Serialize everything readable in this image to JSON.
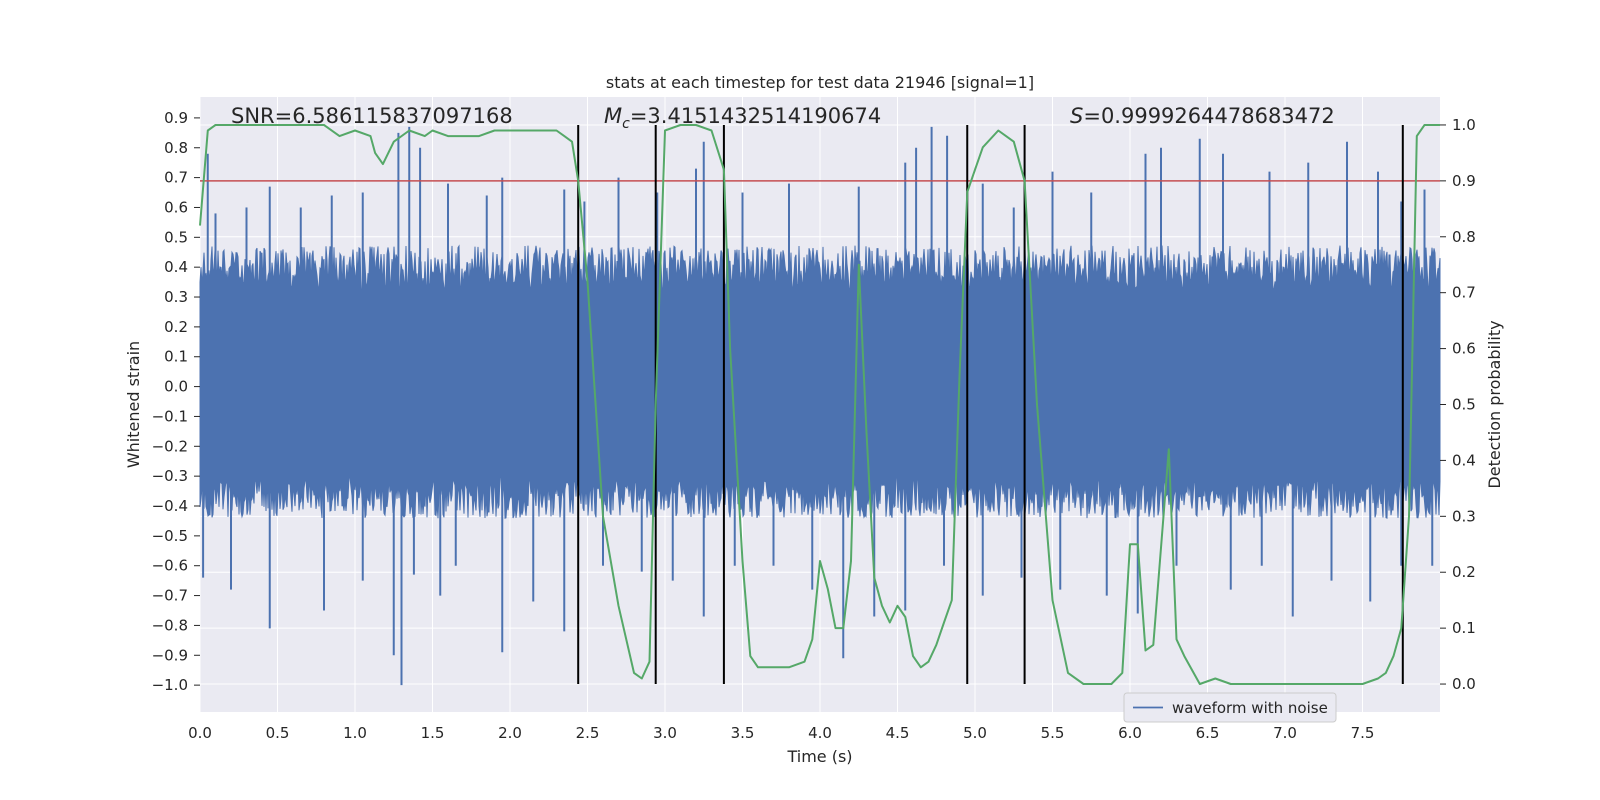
{
  "chart_data": {
    "type": "line",
    "title": "stats at each timestep for test data 21946 [signal=1]",
    "xlabel": "Time (s)",
    "ylabel_left": "Whitened strain",
    "ylabel_right": "Detection probability",
    "xlim": [
      0.0,
      8.0
    ],
    "ylim_left": [
      -1.09,
      0.97
    ],
    "ylim_right": [
      -0.05,
      1.05
    ],
    "x_ticks": [
      "0.0",
      "0.5",
      "1.0",
      "1.5",
      "2.0",
      "2.5",
      "3.0",
      "3.5",
      "4.0",
      "4.5",
      "5.0",
      "5.5",
      "6.0",
      "6.5",
      "7.0",
      "7.5"
    ],
    "y_left_ticks": [
      "0.9",
      "0.8",
      "0.7",
      "0.6",
      "0.5",
      "0.4",
      "0.3",
      "0.2",
      "0.1",
      "0.0",
      "−0.1",
      "−0.2",
      "−0.3",
      "−0.4",
      "−0.5",
      "−0.6",
      "−0.7",
      "−0.8",
      "−0.9",
      "−1.0"
    ],
    "y_left_tick_values": [
      0.9,
      0.8,
      0.7,
      0.6,
      0.5,
      0.4,
      0.3,
      0.2,
      0.1,
      0.0,
      -0.1,
      -0.2,
      -0.3,
      -0.4,
      -0.5,
      -0.6,
      -0.7,
      -0.8,
      -0.9,
      -1.0
    ],
    "y_right_ticks": [
      "1.0",
      "0.9",
      "0.8",
      "0.7",
      "0.6",
      "0.5",
      "0.4",
      "0.3",
      "0.2",
      "0.1",
      "0.0"
    ],
    "y_right_tick_values": [
      1.0,
      0.9,
      0.8,
      0.7,
      0.6,
      0.5,
      0.4,
      0.3,
      0.2,
      0.1,
      0.0
    ],
    "annotations": {
      "snr": "SNR=6.586115837097168",
      "mc_symbol": "M",
      "mc_subscript": "c",
      "mc_value": "=3.4151432514190674",
      "s_symbol": "S",
      "s_value": "=0.9999264478683472"
    },
    "threshold": {
      "value": 0.9,
      "axis": "right",
      "color": "#c44e52"
    },
    "vertical_lines": [
      2.44,
      2.94,
      3.38,
      4.95,
      5.32,
      7.76
    ],
    "waveform": {
      "name": "waveform with noise",
      "color": "#4c72b0",
      "envelope_upper": 0.45,
      "envelope_lower": -0.42,
      "spikes_up": [
        [
          0.05,
          0.78
        ],
        [
          0.1,
          0.58
        ],
        [
          0.3,
          0.6
        ],
        [
          0.45,
          0.67
        ],
        [
          0.65,
          0.6
        ],
        [
          0.85,
          0.64
        ],
        [
          1.05,
          0.65
        ],
        [
          1.28,
          0.85
        ],
        [
          1.35,
          0.87
        ],
        [
          1.42,
          0.8
        ],
        [
          1.6,
          0.68
        ],
        [
          1.85,
          0.64
        ],
        [
          1.95,
          0.7
        ],
        [
          2.35,
          0.66
        ],
        [
          2.48,
          0.62
        ],
        [
          2.7,
          0.7
        ],
        [
          2.95,
          0.65
        ],
        [
          3.2,
          0.73
        ],
        [
          3.25,
          0.82
        ],
        [
          3.5,
          0.65
        ],
        [
          3.8,
          0.68
        ],
        [
          4.25,
          0.67
        ],
        [
          4.55,
          0.75
        ],
        [
          4.62,
          0.8
        ],
        [
          4.72,
          0.87
        ],
        [
          4.82,
          0.84
        ],
        [
          5.05,
          0.68
        ],
        [
          5.25,
          0.6
        ],
        [
          5.5,
          0.72
        ],
        [
          5.75,
          0.65
        ],
        [
          6.1,
          0.78
        ],
        [
          6.2,
          0.8
        ],
        [
          6.45,
          0.83
        ],
        [
          6.6,
          0.78
        ],
        [
          6.9,
          0.72
        ],
        [
          7.15,
          0.75
        ],
        [
          7.4,
          0.82
        ],
        [
          7.6,
          0.72
        ],
        [
          7.75,
          0.62
        ],
        [
          7.9,
          0.66
        ]
      ],
      "spikes_down": [
        [
          0.02,
          -0.64
        ],
        [
          0.2,
          -0.68
        ],
        [
          0.45,
          -0.81
        ],
        [
          0.8,
          -0.75
        ],
        [
          1.05,
          -0.65
        ],
        [
          1.25,
          -0.9
        ],
        [
          1.3,
          -1.0
        ],
        [
          1.38,
          -0.63
        ],
        [
          1.55,
          -0.7
        ],
        [
          1.65,
          -0.6
        ],
        [
          1.95,
          -0.89
        ],
        [
          2.15,
          -0.72
        ],
        [
          2.35,
          -0.82
        ],
        [
          2.6,
          -0.6
        ],
        [
          2.85,
          -0.62
        ],
        [
          3.05,
          -0.65
        ],
        [
          3.25,
          -0.77
        ],
        [
          3.45,
          -0.6
        ],
        [
          3.7,
          -0.6
        ],
        [
          3.95,
          -0.68
        ],
        [
          4.15,
          -0.91
        ],
        [
          4.35,
          -0.77
        ],
        [
          4.55,
          -0.75
        ],
        [
          4.8,
          -0.6
        ],
        [
          5.05,
          -0.7
        ],
        [
          5.3,
          -0.64
        ],
        [
          5.55,
          -0.68
        ],
        [
          5.85,
          -0.7
        ],
        [
          6.05,
          -0.76
        ],
        [
          6.3,
          -0.6
        ],
        [
          6.65,
          -0.68
        ],
        [
          6.85,
          -0.6
        ],
        [
          7.05,
          -0.77
        ],
        [
          7.3,
          -0.65
        ],
        [
          7.55,
          -0.72
        ],
        [
          7.75,
          -0.6
        ],
        [
          7.95,
          -0.6
        ]
      ]
    },
    "probability": {
      "color": "#55a868",
      "x": [
        0.0,
        0.05,
        0.1,
        0.2,
        0.4,
        0.6,
        0.8,
        0.9,
        1.0,
        1.1,
        1.13,
        1.18,
        1.25,
        1.35,
        1.45,
        1.5,
        1.6,
        1.7,
        1.8,
        1.9,
        2.0,
        2.1,
        2.2,
        2.3,
        2.35,
        2.4,
        2.44,
        2.5,
        2.6,
        2.7,
        2.8,
        2.85,
        2.9,
        2.94,
        3.0,
        3.1,
        3.2,
        3.3,
        3.38,
        3.42,
        3.5,
        3.55,
        3.6,
        3.7,
        3.8,
        3.9,
        3.95,
        4.0,
        4.05,
        4.1,
        4.15,
        4.2,
        4.25,
        4.3,
        4.35,
        4.4,
        4.45,
        4.5,
        4.55,
        4.6,
        4.65,
        4.7,
        4.75,
        4.8,
        4.85,
        4.9,
        4.95,
        5.0,
        5.05,
        5.15,
        5.2,
        5.25,
        5.32,
        5.4,
        5.5,
        5.6,
        5.7,
        5.8,
        5.88,
        5.95,
        6.0,
        6.05,
        6.1,
        6.15,
        6.25,
        6.3,
        6.35,
        6.45,
        6.55,
        6.65,
        6.8,
        7.0,
        7.2,
        7.4,
        7.5,
        7.6,
        7.65,
        7.7,
        7.75,
        7.8,
        7.85,
        7.9,
        8.0
      ],
      "values": [
        0.82,
        0.99,
        1.0,
        1.0,
        1.0,
        1.0,
        1.0,
        0.98,
        0.99,
        0.98,
        0.95,
        0.93,
        0.97,
        0.99,
        0.98,
        0.99,
        0.98,
        0.98,
        0.98,
        0.99,
        0.99,
        0.99,
        0.99,
        0.99,
        0.98,
        0.97,
        0.9,
        0.72,
        0.3,
        0.14,
        0.02,
        0.01,
        0.04,
        0.5,
        0.99,
        1.0,
        1.0,
        0.99,
        0.92,
        0.6,
        0.22,
        0.05,
        0.03,
        0.03,
        0.03,
        0.04,
        0.08,
        0.22,
        0.17,
        0.1,
        0.1,
        0.22,
        0.75,
        0.45,
        0.19,
        0.14,
        0.11,
        0.14,
        0.12,
        0.05,
        0.03,
        0.04,
        0.07,
        0.11,
        0.15,
        0.55,
        0.88,
        0.92,
        0.96,
        0.99,
        0.98,
        0.97,
        0.9,
        0.5,
        0.15,
        0.02,
        0.0,
        0.0,
        0.0,
        0.02,
        0.25,
        0.25,
        0.06,
        0.07,
        0.42,
        0.08,
        0.05,
        0.0,
        0.01,
        0.0,
        0.0,
        0.0,
        0.0,
        0.0,
        0.0,
        0.01,
        0.02,
        0.05,
        0.1,
        0.3,
        0.98,
        1.0,
        1.0
      ]
    }
  }
}
